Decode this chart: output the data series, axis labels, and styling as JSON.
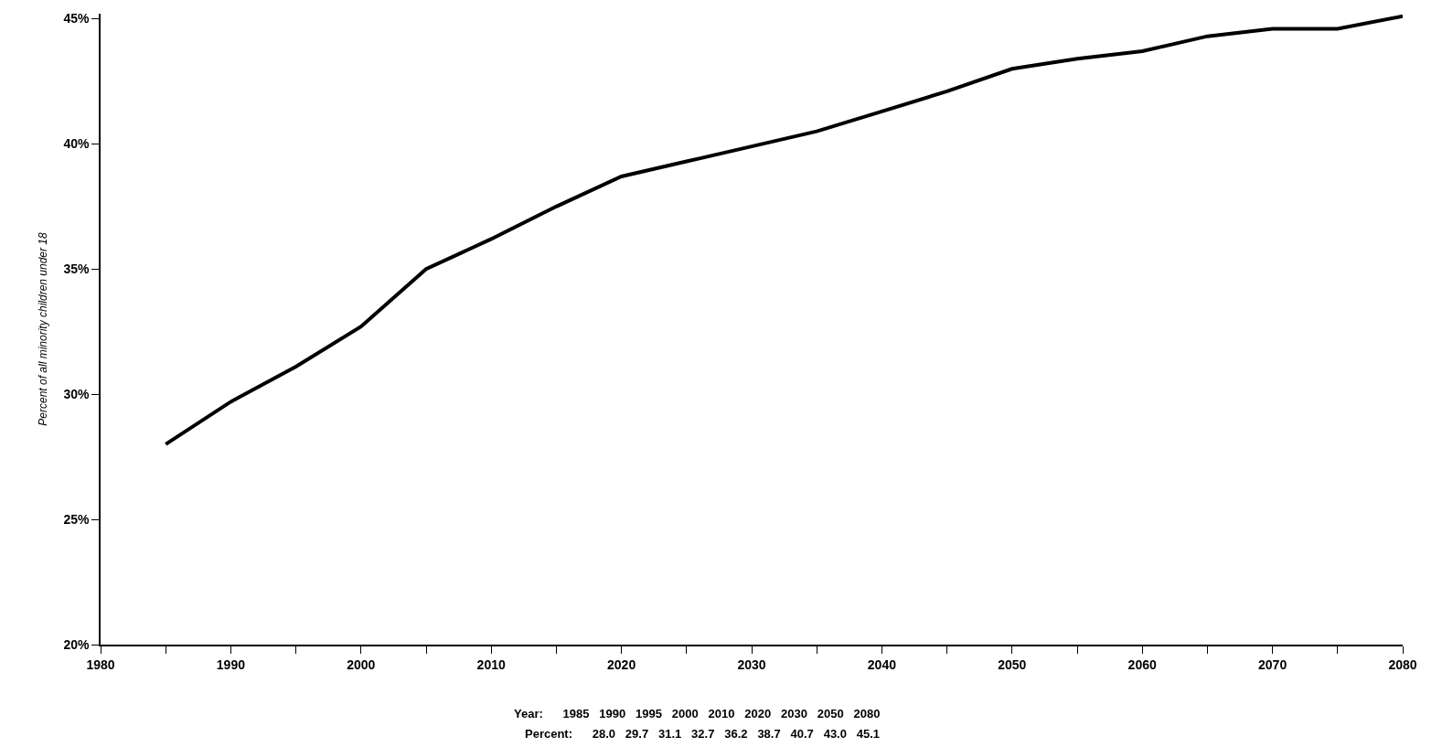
{
  "chart_data": {
    "type": "line",
    "ylabel": "Percent of all minority children under 18",
    "x": [
      1985,
      1990,
      1995,
      2000,
      2005,
      2010,
      2015,
      2020,
      2025,
      2030,
      2035,
      2040,
      2045,
      2050,
      2055,
      2060,
      2065,
      2070,
      2075,
      2080
    ],
    "series": [
      {
        "color": "#000000",
        "values": [
          28.0,
          29.7,
          31.1,
          32.7,
          35.0,
          36.2,
          37.5,
          38.7,
          39.3,
          39.9,
          40.5,
          41.3,
          42.1,
          43.0,
          43.4,
          43.7,
          44.3,
          44.6,
          44.6,
          45.1
        ]
      }
    ],
    "xlim": [
      1980,
      2080
    ],
    "xticks": [
      1980,
      {
        "value": 1985,
        "label": null
      },
      1990,
      {
        "value": 1995,
        "label": null
      },
      2000,
      {
        "value": 2005,
        "label": null
      },
      2010,
      {
        "value": 2015,
        "label": null
      },
      2020,
      {
        "value": 2025,
        "label": null
      },
      2030,
      {
        "value": 2035,
        "label": null
      },
      2040,
      {
        "value": 2045,
        "label": null
      },
      2050,
      {
        "value": 2055,
        "label": null
      },
      2060,
      {
        "value": 2065,
        "label": null
      },
      2070,
      {
        "value": 2075,
        "label": null
      },
      2080
    ],
    "ylim": [
      20,
      45.2
    ],
    "yticks": [
      {
        "value": 20,
        "label": "20%"
      },
      {
        "value": 25,
        "label": "25%"
      },
      {
        "value": 30,
        "label": "30%"
      },
      {
        "value": 35,
        "label": "35%"
      },
      {
        "value": 40,
        "label": "40%"
      },
      {
        "value": 45,
        "label": "45%"
      }
    ],
    "marker": "none",
    "line_style": "solid",
    "annotations": [
      "Year:      1985   1990   1995   2000   2010   2020   2030   2050   2080",
      "Percent:      28.0   29.7   31.1   32.7   36.2   38.7   40.7   43.0   45.1"
    ]
  }
}
